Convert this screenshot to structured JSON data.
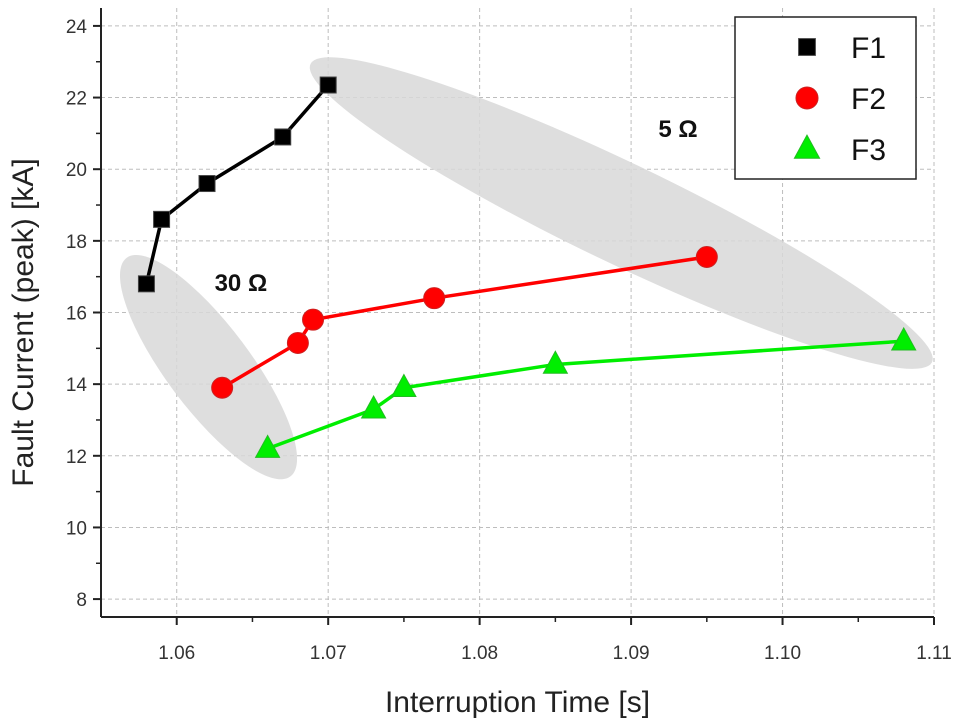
{
  "chart_data": {
    "type": "line",
    "title": "",
    "xlabel": "Interruption Time [s]",
    "ylabel": "Fault Current (peak) [kA]",
    "xlim": [
      1.055,
      1.11
    ],
    "ylim": [
      7.5,
      24.5
    ],
    "x_ticks": [
      1.06,
      1.07,
      1.08,
      1.09,
      1.1,
      1.11
    ],
    "x_tick_labels": [
      "1.06",
      "1.07",
      "1.08",
      "1.09",
      "1.10",
      "1.11"
    ],
    "y_ticks": [
      8,
      10,
      12,
      14,
      16,
      18,
      20,
      22,
      24
    ],
    "y_tick_labels": [
      "8",
      "10",
      "12",
      "14",
      "16",
      "18",
      "20",
      "22",
      "24"
    ],
    "grid": true,
    "legend_position": "top-right",
    "series": [
      {
        "name": "F1",
        "color": "#000000",
        "marker": "square",
        "points": [
          [
            1.058,
            16.8
          ],
          [
            1.059,
            18.6
          ],
          [
            1.062,
            19.6
          ],
          [
            1.067,
            20.9
          ],
          [
            1.07,
            22.35
          ]
        ]
      },
      {
        "name": "F2",
        "color": "#ff0000",
        "marker": "circle",
        "points": [
          [
            1.063,
            13.9
          ],
          [
            1.068,
            15.15
          ],
          [
            1.069,
            15.8
          ],
          [
            1.077,
            16.4
          ],
          [
            1.095,
            17.55
          ]
        ]
      },
      {
        "name": "F3",
        "color": "#00ee00",
        "marker": "triangle",
        "points": [
          [
            1.066,
            12.2
          ],
          [
            1.073,
            13.3
          ],
          [
            1.075,
            13.9
          ],
          [
            1.085,
            14.55
          ],
          [
            1.108,
            15.2
          ]
        ]
      }
    ],
    "annotations": [
      {
        "text": "30 Ω",
        "x": 1.0625,
        "y": 16.6
      },
      {
        "text": "5 Ω",
        "x": 1.0918,
        "y": 20.9
      }
    ]
  }
}
